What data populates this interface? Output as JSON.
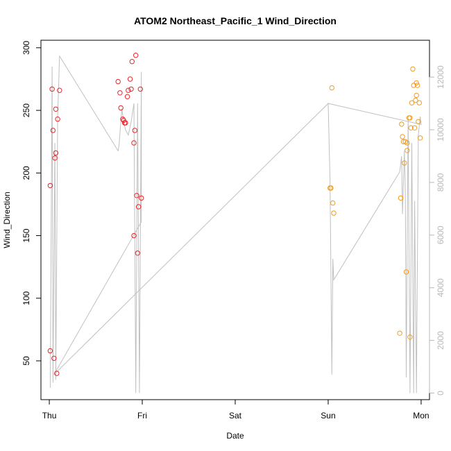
{
  "chart_data": {
    "type": "scatter",
    "title": "ATOM2 Northeast_Pacific_1 Wind_Direction",
    "xlabel": "Date",
    "ylabel": "Wind_Direction",
    "x_ticks": [
      "Thu",
      "Fri",
      "Sat",
      "Sun",
      "Mon"
    ],
    "xlim": [
      -0.09,
      4.09
    ],
    "ylim": [
      19,
      306
    ],
    "y_ticks": [
      50,
      100,
      150,
      200,
      250,
      300
    ],
    "y2lim": [
      -250,
      13400
    ],
    "y2_ticks": [
      0,
      2000,
      4000,
      6000,
      8000,
      10000,
      12000
    ],
    "grid": false,
    "colors": {
      "red": "#e8252a",
      "orange": "#f39b1f",
      "grey": "#c0c0c0",
      "axis": "#000000",
      "axis2": "#b8b8b8"
    },
    "series": [
      {
        "color": "red",
        "points": [
          [
            0.01,
            58
          ],
          [
            0.01,
            190
          ],
          [
            0.03,
            267
          ],
          [
            0.04,
            234
          ],
          [
            0.05,
            52
          ],
          [
            0.06,
            212
          ],
          [
            0.07,
            251
          ],
          [
            0.07,
            216
          ],
          [
            0.08,
            40
          ],
          [
            0.09,
            243
          ],
          [
            0.11,
            266
          ],
          [
            0.74,
            273
          ],
          [
            0.76,
            264
          ],
          [
            0.77,
            252
          ],
          [
            0.79,
            243
          ],
          [
            0.8,
            242
          ],
          [
            0.81,
            240
          ],
          [
            0.82,
            240
          ],
          [
            0.84,
            261
          ],
          [
            0.85,
            266
          ],
          [
            0.87,
            275
          ],
          [
            0.88,
            267
          ],
          [
            0.89,
            289
          ],
          [
            0.91,
            224
          ],
          [
            0.91,
            150
          ],
          [
            0.92,
            234
          ],
          [
            0.93,
            294
          ],
          [
            0.94,
            182
          ],
          [
            0.95,
            136
          ],
          [
            0.96,
            173
          ],
          [
            0.98,
            267
          ],
          [
            0.99,
            180
          ]
        ]
      },
      {
        "color": "orange",
        "points": [
          [
            3.02,
            188
          ],
          [
            3.03,
            188
          ],
          [
            3.04,
            268
          ],
          [
            3.05,
            176
          ],
          [
            3.06,
            168
          ],
          [
            3.77,
            72
          ],
          [
            3.78,
            180
          ],
          [
            3.79,
            239
          ],
          [
            3.8,
            229
          ],
          [
            3.81,
            225
          ],
          [
            3.82,
            208
          ],
          [
            3.83,
            225
          ],
          [
            3.84,
            121
          ],
          [
            3.85,
            218
          ],
          [
            3.85,
            224
          ],
          [
            3.87,
            244
          ],
          [
            3.88,
            244
          ],
          [
            3.88,
            69
          ],
          [
            3.89,
            236
          ],
          [
            3.9,
            256
          ],
          [
            3.91,
            283
          ],
          [
            3.92,
            270
          ],
          [
            3.93,
            236
          ],
          [
            3.94,
            258
          ],
          [
            3.95,
            272
          ],
          [
            3.95,
            262
          ],
          [
            3.96,
            270
          ],
          [
            3.97,
            241
          ],
          [
            3.98,
            256
          ],
          [
            3.99,
            228
          ]
        ]
      }
    ],
    "secondary_line": {
      "color": "grey",
      "points": [
        [
          0.01,
          200
        ],
        [
          0.03,
          12400
        ],
        [
          0.04,
          400
        ],
        [
          0.06,
          9500
        ],
        [
          0.07,
          500
        ],
        [
          0.09,
          10500
        ],
        [
          0.11,
          12800
        ],
        [
          0.74,
          9200
        ],
        [
          0.75,
          9400
        ],
        [
          0.78,
          10800
        ],
        [
          0.8,
          10300
        ],
        [
          0.82,
          10000
        ],
        [
          0.85,
          9800
        ],
        [
          0.88,
          10300
        ],
        [
          0.91,
          11000
        ],
        [
          0.93,
          0
        ],
        [
          0.95,
          11000
        ],
        [
          0.97,
          0
        ],
        [
          0.99,
          12200
        ],
        [
          0.99,
          6500
        ],
        [
          0.05,
          700
        ],
        [
          3.0,
          11000
        ],
        [
          3.02,
          8000
        ],
        [
          3.04,
          700
        ],
        [
          3.05,
          5100
        ],
        [
          3.06,
          4300
        ],
        [
          3.77,
          8400
        ],
        [
          3.79,
          9000
        ],
        [
          3.8,
          6800
        ],
        [
          3.82,
          9200
        ],
        [
          3.83,
          7600
        ],
        [
          3.84,
          600
        ],
        [
          3.86,
          10400
        ],
        [
          3.88,
          0
        ],
        [
          3.9,
          9500
        ],
        [
          3.92,
          0
        ],
        [
          3.93,
          7300
        ],
        [
          3.95,
          0
        ],
        [
          3.97,
          9800
        ],
        [
          3.99,
          10500
        ],
        [
          4.0,
          10200
        ],
        [
          3.0,
          11000
        ]
      ]
    }
  }
}
